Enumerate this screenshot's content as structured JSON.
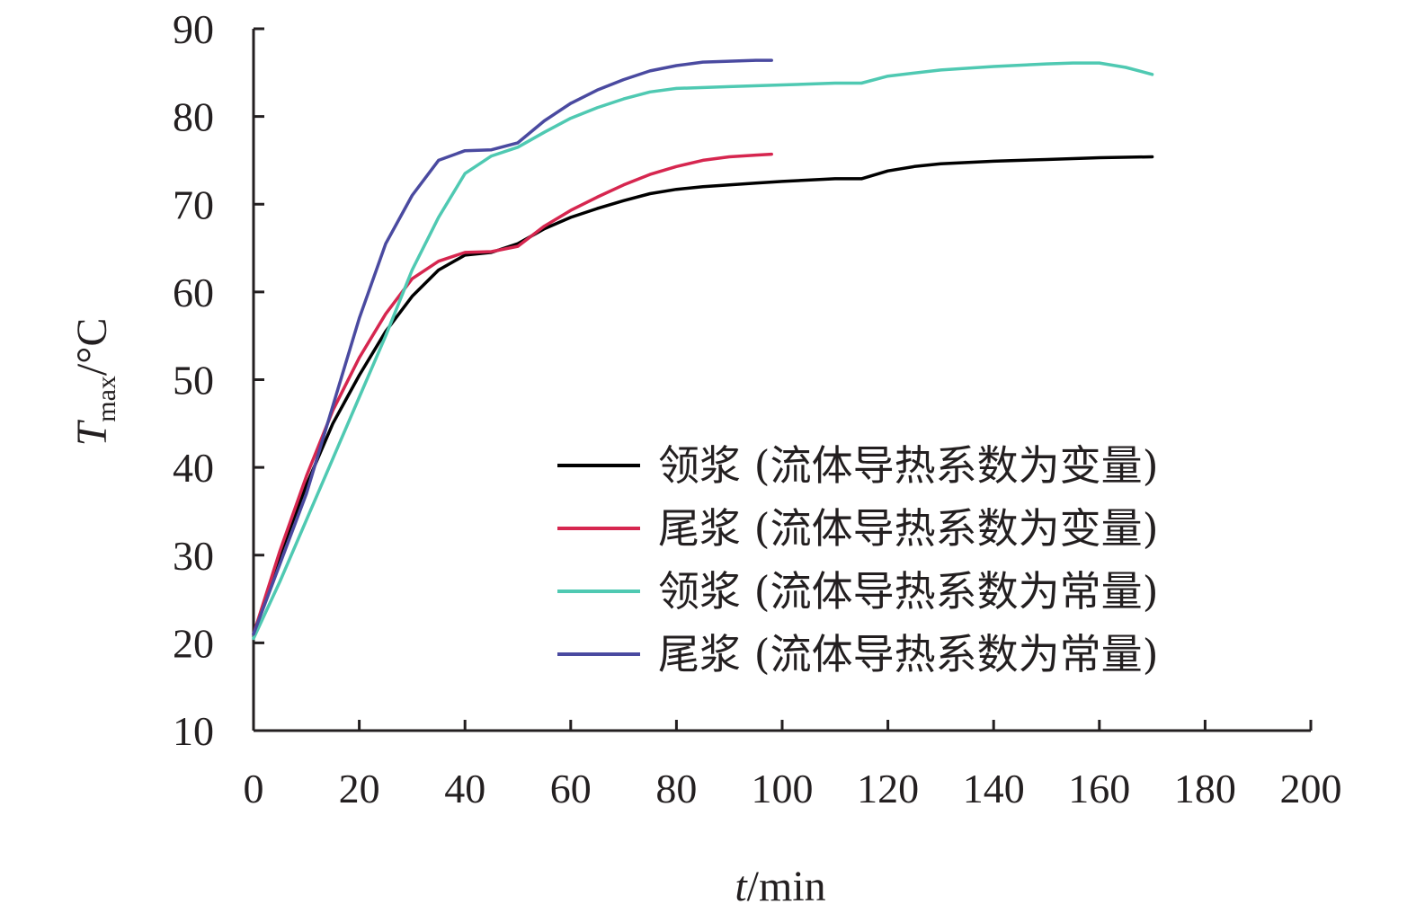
{
  "chart_data": {
    "type": "line",
    "xlim": [
      0,
      200
    ],
    "ylim": [
      10,
      90
    ],
    "x_ticks": [
      "0",
      "20",
      "40",
      "60",
      "80",
      "100",
      "120",
      "140",
      "160",
      "180",
      "200"
    ],
    "y_ticks": [
      "10",
      "20",
      "30",
      "40",
      "50",
      "60",
      "70",
      "80",
      "90"
    ],
    "xlabel": {
      "var": "t",
      "unit": "/min"
    },
    "ylabel": {
      "var": "T",
      "sub": "max",
      "unit": "/°C"
    },
    "grid": false,
    "legend_position": "lower-right",
    "series": [
      {
        "name": "领浆 (流体导热系数为变量)",
        "color": "#000000",
        "x": [
          0,
          5,
          10,
          15,
          20,
          25,
          30,
          35,
          40,
          45,
          50,
          55,
          60,
          65,
          70,
          75,
          80,
          85,
          90,
          95,
          100,
          110,
          115,
          120,
          125,
          130,
          140,
          150,
          160,
          170
        ],
        "y": [
          21,
          30,
          38,
          45,
          50.5,
          55.5,
          59.5,
          62.5,
          64.2,
          64.5,
          65.5,
          67.2,
          68.5,
          69.5,
          70.4,
          71.2,
          71.7,
          72,
          72.2,
          72.4,
          72.6,
          72.9,
          72.9,
          73.8,
          74.3,
          74.6,
          74.9,
          75.1,
          75.3,
          75.4
        ]
      },
      {
        "name": "尾浆 (流体导热系数为变量)",
        "color": "#d6264f",
        "x": [
          0,
          5,
          10,
          15,
          20,
          25,
          30,
          35,
          40,
          45,
          50,
          55,
          60,
          65,
          70,
          75,
          80,
          85,
          90,
          95,
          98
        ],
        "y": [
          21,
          30.5,
          39,
          46.5,
          52.5,
          57.5,
          61.5,
          63.5,
          64.5,
          64.6,
          65.2,
          67.5,
          69.3,
          70.8,
          72.2,
          73.4,
          74.3,
          75,
          75.4,
          75.6,
          75.7
        ]
      },
      {
        "name": "领浆 (流体导热系数为常量)",
        "color": "#4fc9b2",
        "x": [
          0,
          5,
          10,
          15,
          20,
          25,
          30,
          35,
          40,
          45,
          50,
          55,
          60,
          65,
          70,
          75,
          80,
          90,
          100,
          110,
          115,
          120,
          130,
          140,
          150,
          155,
          160,
          165,
          170
        ],
        "y": [
          20.5,
          27,
          34,
          41,
          48,
          55,
          62.5,
          68.5,
          73.5,
          75.5,
          76.5,
          78.2,
          79.8,
          81,
          82,
          82.8,
          83.2,
          83.4,
          83.6,
          83.8,
          83.8,
          84.6,
          85.3,
          85.7,
          86,
          86.1,
          86.1,
          85.6,
          84.8
        ]
      },
      {
        "name": "尾浆 (流体导热系数为常量)",
        "color": "#4a4aa0",
        "x": [
          0,
          5,
          10,
          15,
          20,
          25,
          30,
          35,
          40,
          45,
          50,
          55,
          60,
          65,
          70,
          75,
          80,
          85,
          90,
          95,
          98
        ],
        "y": [
          21,
          29,
          37,
          47,
          57,
          65.5,
          71,
          75,
          76.1,
          76.2,
          77,
          79.5,
          81.5,
          83,
          84.2,
          85.2,
          85.8,
          86.2,
          86.3,
          86.4,
          86.4
        ]
      }
    ]
  }
}
